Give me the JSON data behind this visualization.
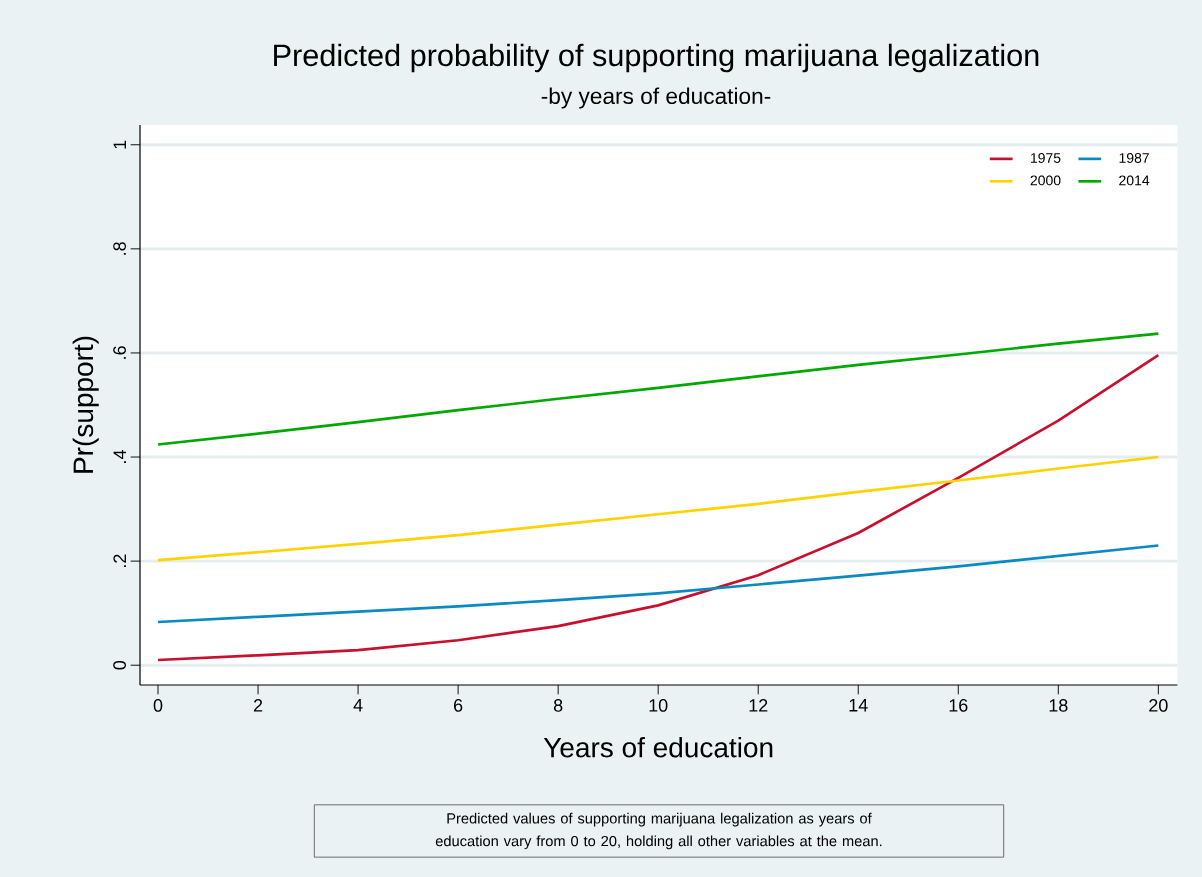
{
  "chart_data": {
    "type": "line",
    "title": "Predicted probability of supporting marijuana legalization",
    "subtitle": "-by years of education-",
    "xlabel": "Years of education",
    "ylabel": "Pr(support)",
    "annotations": [
      "Predicted values of supporting marijuana legalization as years of education vary from 0 to 20, holding all other variables at the mean."
    ],
    "x": [
      0,
      2,
      4,
      6,
      8,
      10,
      12,
      14,
      16,
      18,
      20
    ],
    "series": [
      {
        "name": "1975",
        "color": "#c8102e",
        "values": [
          0.01,
          0.019,
          0.029,
          0.048,
          0.075,
          0.115,
          0.173,
          0.254,
          0.36,
          0.47,
          0.596
        ]
      },
      {
        "name": "1987",
        "color": "#0a8ac2",
        "values": [
          0.083,
          0.093,
          0.103,
          0.113,
          0.125,
          0.138,
          0.155,
          0.172,
          0.19,
          0.21,
          0.23
        ]
      },
      {
        "name": "2000",
        "color": "#ffd200",
        "values": [
          0.202,
          0.217,
          0.233,
          0.25,
          0.27,
          0.29,
          0.31,
          0.333,
          0.355,
          0.378,
          0.4
        ]
      },
      {
        "name": "2014",
        "color": "#00a800",
        "values": [
          0.424,
          0.445,
          0.467,
          0.49,
          0.512,
          0.533,
          0.555,
          0.577,
          0.597,
          0.618,
          0.637
        ]
      }
    ],
    "xlim": [
      -0.36,
      20.38
    ],
    "ylim": [
      -0.038,
      1.038
    ],
    "xticks": [
      0,
      2,
      4,
      6,
      8,
      10,
      12,
      14,
      16,
      18,
      20
    ],
    "yticks": [
      0,
      {
        "value": 0.2,
        "label": ".2"
      },
      {
        "value": 0.4,
        "label": ".4"
      },
      {
        "value": 0.6,
        "label": ".6"
      },
      {
        "value": 0.8,
        "label": ".8"
      },
      1
    ],
    "grid": "y",
    "legend": "top right",
    "marker": "none",
    "line_style": "solid"
  }
}
